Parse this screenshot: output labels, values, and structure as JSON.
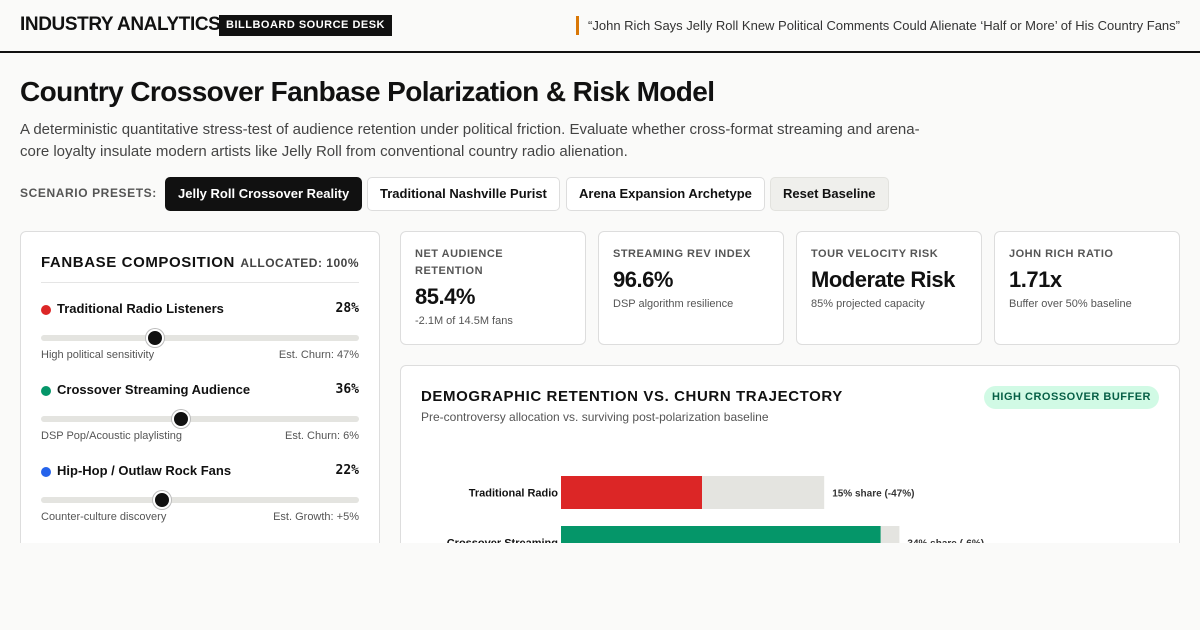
{
  "header": {
    "brand": "INDUSTRY ANALYTICS",
    "desk": "BILLBOARD SOURCE DESK",
    "headline": "“John Rich Says Jelly Roll Knew Political Comments Could Alienate ‘Half or More’ of His Country Fans”"
  },
  "page": {
    "title": "Country Crossover Fanbase Polarization & Risk Model",
    "description": "A deterministic quantitative stress-test of audience retention under political friction. Evaluate whether cross-format streaming and arena-core loyalty insulate modern artists like Jelly Roll from conventional country radio alienation."
  },
  "presets": {
    "label": "SCENARIO PRESETS:",
    "buttons": [
      {
        "label": "Jelly Roll Crossover Reality"
      },
      {
        "label": "Traditional Nashville Purist"
      },
      {
        "label": "Arena Expansion Archetype"
      },
      {
        "label": "Reset Baseline"
      }
    ]
  },
  "composition": {
    "title": "FANBASE COMPOSITION",
    "allocated": "ALLOCATED: 100%",
    "segments": [
      {
        "name": "Traditional Radio Listeners",
        "pct": "28%",
        "slider_value": 0.36,
        "note": "High political sensitivity",
        "churn": "Est. Churn: 47%",
        "color": "#dc2626"
      },
      {
        "name": "Crossover Streaming Audience",
        "pct": "36%",
        "slider_value": 0.44,
        "note": "DSP Pop/Acoustic playlisting",
        "churn": "Est. Churn: 6%",
        "color": "#059669"
      },
      {
        "name": "Hip-Hop / Outlaw Rock Fans",
        "pct": "22%",
        "slider_value": 0.38,
        "note": "Counter-culture discovery",
        "churn": "Est. Growth: +5%",
        "color": "#2563eb"
      }
    ]
  },
  "kpis": [
    {
      "label": "NET AUDIENCE RETENTION",
      "value": "85.4%",
      "sub": "-2.1M of 14.5M fans"
    },
    {
      "label": "STREAMING REV INDEX",
      "value": "96.6%",
      "sub": "DSP algorithm resilience"
    },
    {
      "label": "TOUR VELOCITY RISK",
      "value": "Moderate Risk",
      "sub": "85% projected capacity"
    },
    {
      "label": "JOHN RICH RATIO",
      "value": "1.71x",
      "sub": "Buffer over 50% baseline"
    }
  ],
  "chart_card": {
    "title": "DEMOGRAPHIC RETENTION VS. CHURN TRAJECTORY",
    "subtitle": "Pre-controversy allocation vs. surviving post-polarization baseline",
    "badge": "HIGH CROSSOVER BUFFER"
  },
  "chart_data": {
    "type": "bar",
    "orientation": "horizontal",
    "categories": [
      "Traditional Radio",
      "Crossover Streaming"
    ],
    "series": [
      {
        "values": [
          28,
          36
        ]
      },
      {
        "values": [
          15,
          34
        ]
      }
    ],
    "annotations": [
      "15% share (-47%)",
      "34% share (-6%)"
    ],
    "colors": {
      "baseline": "#e4e4e0",
      "bars": [
        "#dc2626",
        "#059669"
      ]
    }
  }
}
